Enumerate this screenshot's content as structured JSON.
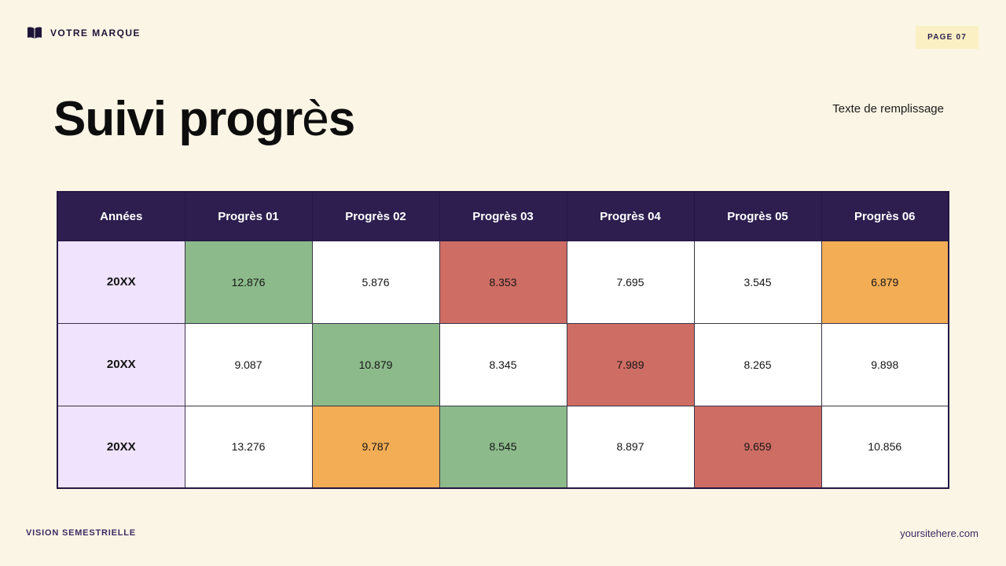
{
  "brand": {
    "name": "VOTRE MARQUE"
  },
  "page_badge": "PAGE 07",
  "title": {
    "pre": "Suivi progr",
    "accent": "è",
    "post": "s"
  },
  "subtitle": "Texte de remplissage",
  "table": {
    "columns": [
      "Années",
      "Progrès 01",
      "Progrès 02",
      "Progrès 03",
      "Progrès 04",
      "Progrès 05",
      "Progrès 06"
    ],
    "rows": [
      {
        "year": "20XX",
        "cells": [
          {
            "value": "12.876",
            "color": "green"
          },
          {
            "value": "5.876",
            "color": null
          },
          {
            "value": "8.353",
            "color": "red"
          },
          {
            "value": "7.695",
            "color": null
          },
          {
            "value": "3.545",
            "color": null
          },
          {
            "value": "6.879",
            "color": "orange"
          }
        ]
      },
      {
        "year": "20XX",
        "cells": [
          {
            "value": "9.087",
            "color": null
          },
          {
            "value": "10.879",
            "color": "green"
          },
          {
            "value": "8.345",
            "color": null
          },
          {
            "value": "7.989",
            "color": "red"
          },
          {
            "value": "8.265",
            "color": null
          },
          {
            "value": "9.898",
            "color": null
          }
        ]
      },
      {
        "year": "20XX",
        "cells": [
          {
            "value": "13.276",
            "color": null
          },
          {
            "value": "9.787",
            "color": "orange"
          },
          {
            "value": "8.545",
            "color": "green"
          },
          {
            "value": "8.897",
            "color": null
          },
          {
            "value": "9.659",
            "color": "red"
          },
          {
            "value": "10.856",
            "color": null
          }
        ]
      }
    ]
  },
  "footer": {
    "left": "VISION SEMESTRIELLE",
    "right": "yoursitehere.com"
  },
  "colors": {
    "background": "#FBF5E5",
    "header_bg": "#2D1E4F",
    "lavender": "#EFE3FD",
    "green": "#8CBA8B",
    "red": "#CE6D64",
    "orange": "#F2AD55",
    "badge_bg": "#FAF0C3",
    "accent_text": "#3B2B63"
  }
}
